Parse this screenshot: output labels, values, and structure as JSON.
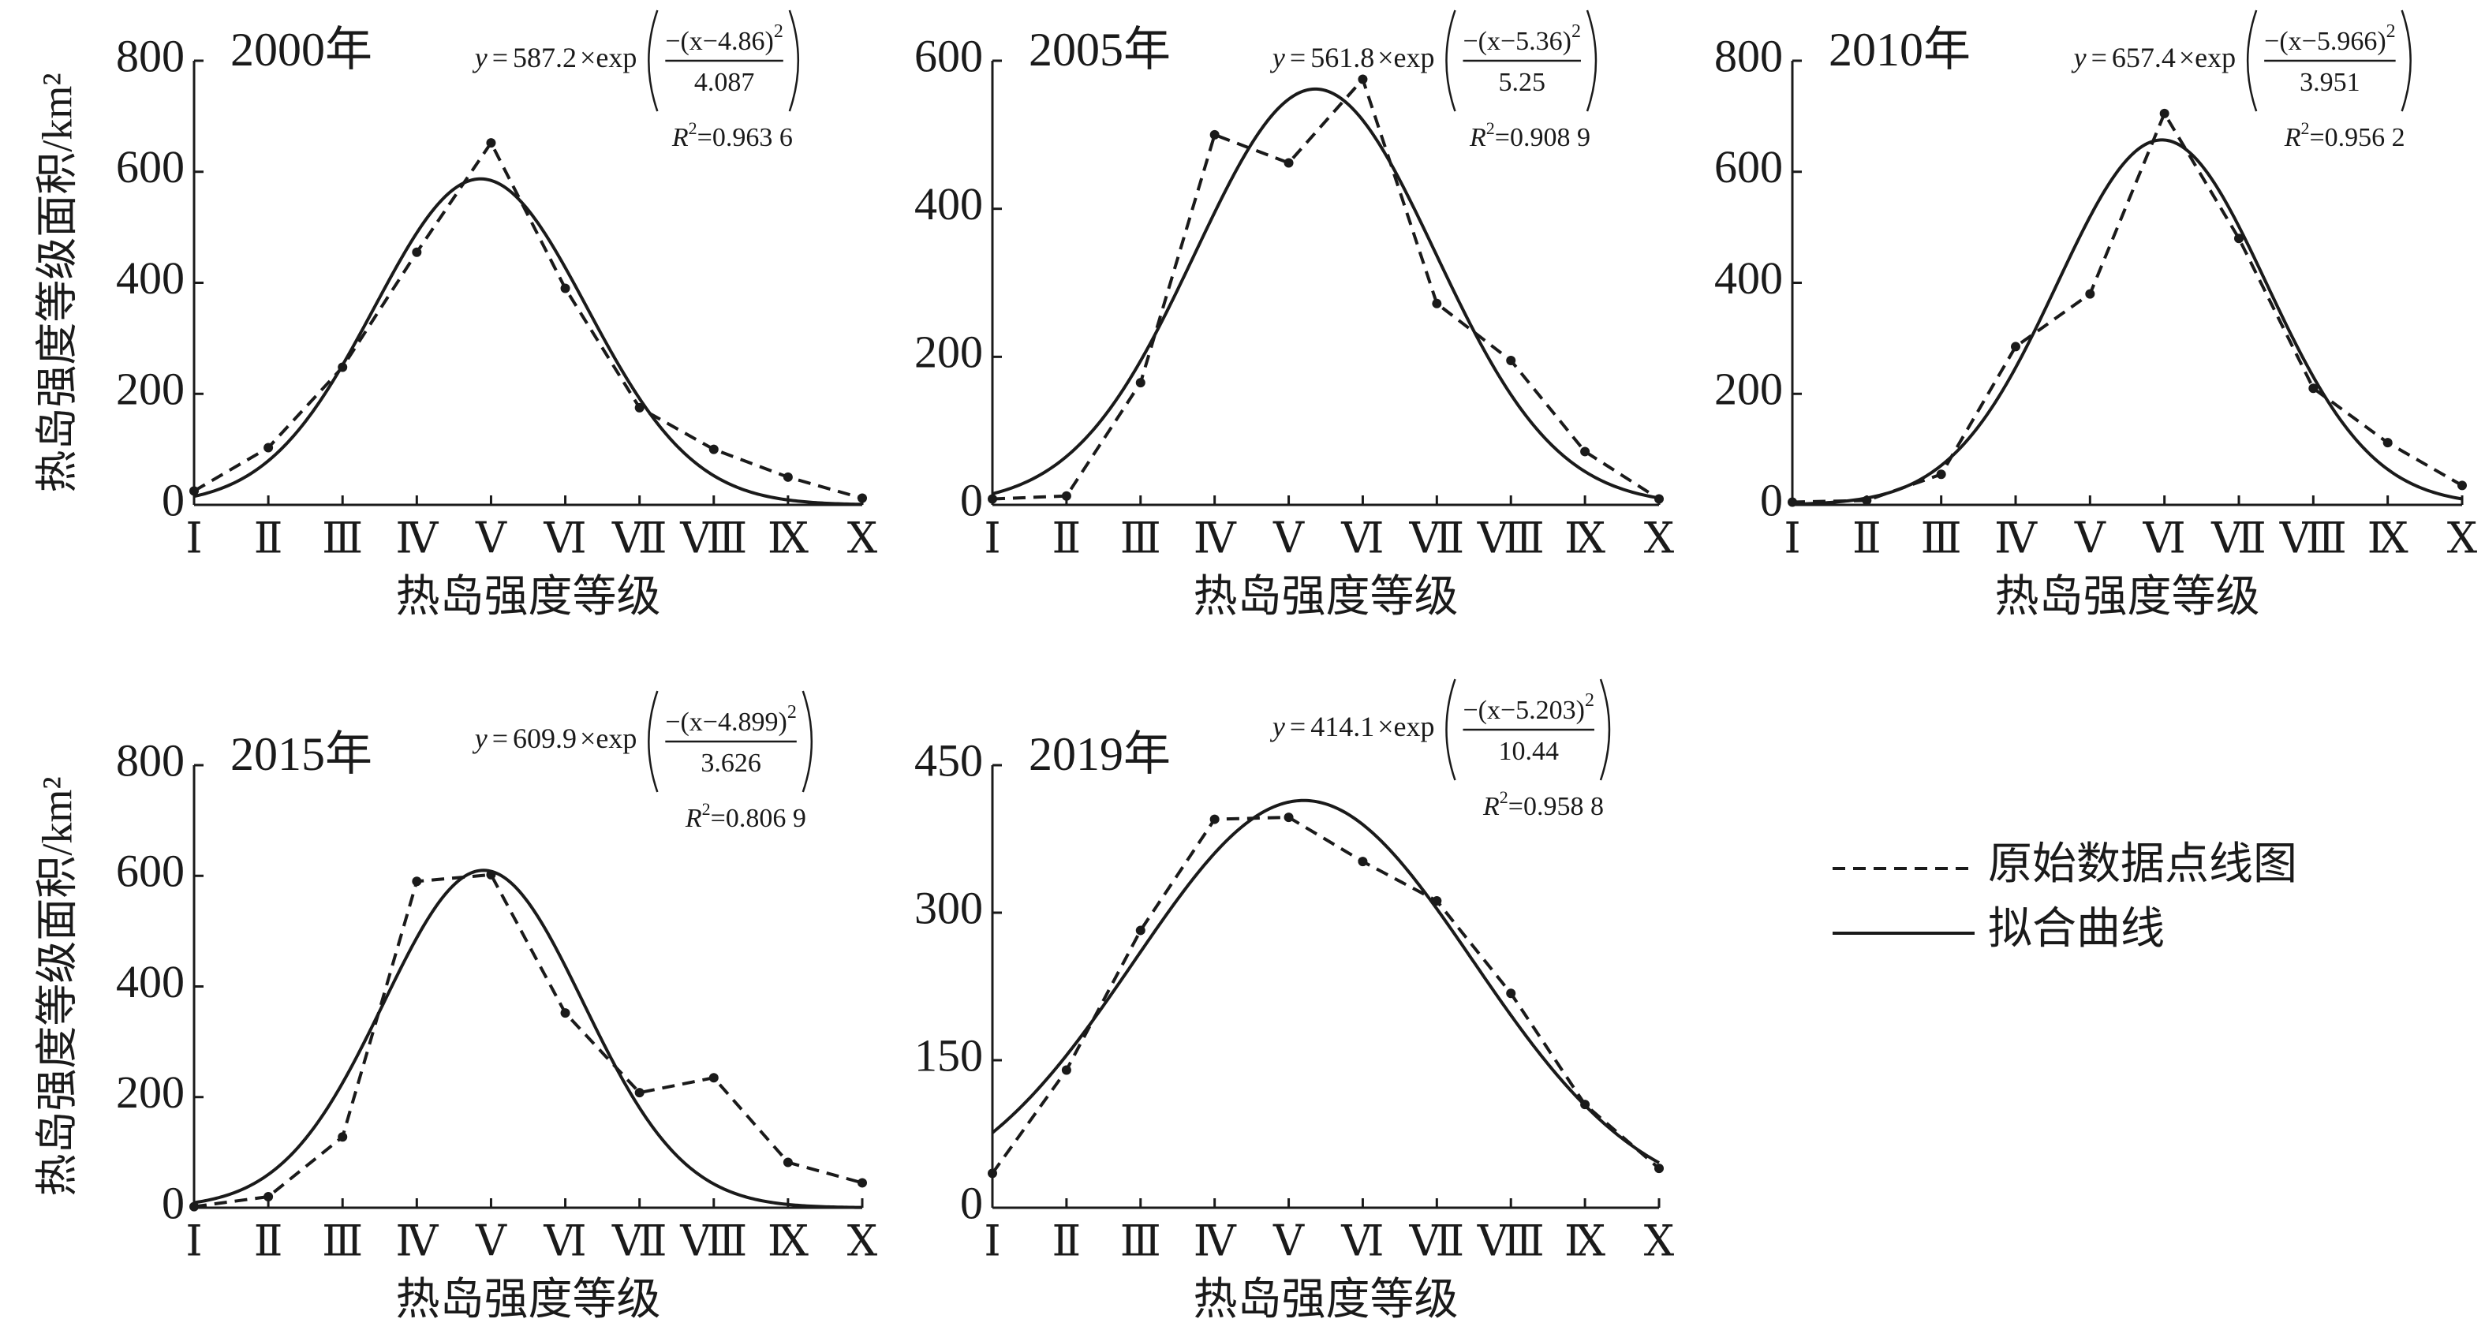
{
  "chart_data": [
    {
      "type": "line",
      "title": "2000年",
      "x_label": "热岛强度等级",
      "y_label": "热岛强度等级面积/km²",
      "categories": [
        "Ⅰ",
        "Ⅱ",
        "Ⅲ",
        "Ⅳ",
        "Ⅴ",
        "Ⅵ",
        "Ⅶ",
        "Ⅷ",
        "Ⅸ",
        "Ⅹ"
      ],
      "ylim": [
        0,
        800
      ],
      "yticks": [
        0,
        200,
        400,
        600,
        800
      ],
      "series": [
        {
          "name": "原始数据点线图",
          "color": "#1a1a1a",
          "dashed": true,
          "values": [
            25,
            103,
            248,
            455,
            652,
            390,
            175,
            100,
            50,
            12
          ]
        },
        {
          "name": "拟合曲线",
          "color": "#1a1a1a",
          "dashed": false,
          "a": 587.2,
          "b": 4.86,
          "c": 4.087
        }
      ],
      "equation": {
        "y": "y",
        "eq": "=",
        "op": "×exp",
        "num_open": "−(x−",
        "num_close": ")",
        "sq": "2",
        "r2_symbol": "R",
        "r2_sup": "2",
        "r2_eq": "=",
        "r2": {
          "value": 0.9636,
          "label": "0.963 6"
        }
      }
    },
    {
      "type": "line",
      "title": "2005年",
      "x_label": "热岛强度等级",
      "categories": [
        "Ⅰ",
        "Ⅱ",
        "Ⅲ",
        "Ⅳ",
        "Ⅴ",
        "Ⅵ",
        "Ⅶ",
        "Ⅷ",
        "Ⅸ",
        "Ⅹ"
      ],
      "ylim": [
        0,
        600
      ],
      "yticks": [
        0,
        200,
        400,
        600
      ],
      "series": [
        {
          "name": "原始数据点线图",
          "color": "#1a1a1a",
          "dashed": true,
          "values": [
            8,
            12,
            165,
            500,
            462,
            575,
            272,
            195,
            72,
            8
          ]
        },
        {
          "name": "拟合曲线",
          "color": "#1a1a1a",
          "dashed": false,
          "a": 561.8,
          "b": 5.36,
          "c": 5.25
        }
      ],
      "equation": {
        "y": "y",
        "eq": "=",
        "op": "×exp",
        "num_open": "−(x−",
        "num_close": ")",
        "sq": "2",
        "r2_symbol": "R",
        "r2_sup": "2",
        "r2_eq": "=",
        "r2": {
          "value": 0.9089,
          "label": "0.908 9"
        }
      }
    },
    {
      "type": "line",
      "title": "2010年",
      "x_label": "热岛强度等级",
      "categories": [
        "Ⅰ",
        "Ⅱ",
        "Ⅲ",
        "Ⅳ",
        "Ⅴ",
        "Ⅵ",
        "Ⅶ",
        "Ⅷ",
        "Ⅸ",
        "Ⅹ"
      ],
      "ylim": [
        0,
        800
      ],
      "yticks": [
        0,
        200,
        400,
        600,
        800
      ],
      "series": [
        {
          "name": "原始数据点线图",
          "color": "#1a1a1a",
          "dashed": true,
          "values": [
            5,
            8,
            55,
            285,
            380,
            705,
            480,
            210,
            112,
            35
          ]
        },
        {
          "name": "拟合曲线",
          "color": "#1a1a1a",
          "dashed": false,
          "a": 657.4,
          "b": 5.966,
          "c": 3.951
        }
      ],
      "equation": {
        "y": "y",
        "eq": "=",
        "op": "×exp",
        "num_open": "−(x−",
        "num_close": ")",
        "sq": "2",
        "r2_symbol": "R",
        "r2_sup": "2",
        "r2_eq": "=",
        "r2": {
          "value": 0.9562,
          "label": "0.956 2"
        }
      }
    },
    {
      "type": "line",
      "title": "2015年",
      "x_label": "热岛强度等级",
      "y_label": "热岛强度等级面积/km²",
      "categories": [
        "Ⅰ",
        "Ⅱ",
        "Ⅲ",
        "Ⅳ",
        "Ⅴ",
        "Ⅵ",
        "Ⅶ",
        "Ⅷ",
        "Ⅸ",
        "Ⅹ"
      ],
      "ylim": [
        0,
        800
      ],
      "yticks": [
        0,
        200,
        400,
        600,
        800
      ],
      "series": [
        {
          "name": "原始数据点线图",
          "color": "#1a1a1a",
          "dashed": true,
          "values": [
            2,
            20,
            128,
            590,
            602,
            352,
            208,
            235,
            82,
            45
          ]
        },
        {
          "name": "拟合曲线",
          "color": "#1a1a1a",
          "dashed": false,
          "a": 609.9,
          "b": 4.899,
          "c": 3.626
        }
      ],
      "equation": {
        "y": "y",
        "eq": "=",
        "op": "×exp",
        "num_open": "−(x−",
        "num_close": ")",
        "sq": "2",
        "r2_symbol": "R",
        "r2_sup": "2",
        "r2_eq": "=",
        "r2": {
          "value": 0.8069,
          "label": "0.806 9"
        }
      }
    },
    {
      "type": "line",
      "title": "2019年",
      "x_label": "热岛强度等级",
      "categories": [
        "Ⅰ",
        "Ⅱ",
        "Ⅲ",
        "Ⅳ",
        "Ⅴ",
        "Ⅵ",
        "Ⅶ",
        "Ⅷ",
        "Ⅸ",
        "Ⅹ"
      ],
      "ylim": [
        0,
        450
      ],
      "yticks": [
        0,
        150,
        300,
        450
      ],
      "series": [
        {
          "name": "原始数据点线图",
          "color": "#1a1a1a",
          "dashed": true,
          "values": [
            35,
            140,
            282,
            395,
            397,
            352,
            312,
            218,
            105,
            40
          ]
        },
        {
          "name": "拟合曲线",
          "color": "#1a1a1a",
          "dashed": false,
          "a": 414.1,
          "b": 5.203,
          "c": 10.44
        }
      ],
      "equation": {
        "y": "y",
        "eq": "=",
        "op": "×exp",
        "num_open": "−(x−",
        "num_close": ")",
        "sq": "2",
        "r2_symbol": "R",
        "r2_sup": "2",
        "r2_eq": "=",
        "r2": {
          "value": 0.9588,
          "label": "0.958 8"
        }
      }
    }
  ]
}
